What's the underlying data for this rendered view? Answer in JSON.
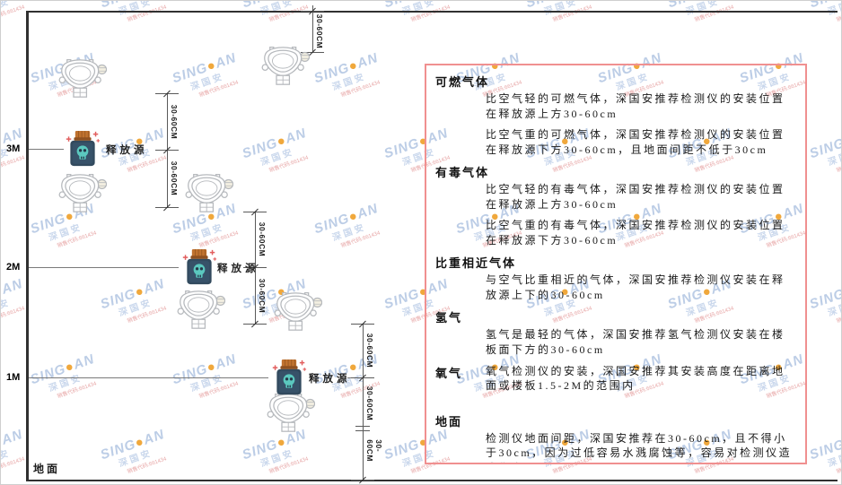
{
  "watermark": {
    "latin_left": "SING",
    "dot": "●",
    "latin_right": "AN",
    "cn": "深国安",
    "sub": "销售代码:661434"
  },
  "diagram": {
    "dimension_label": "30-60CM",
    "source_label": "释放源",
    "ground_label": "地面",
    "height_labels": [
      "3M",
      "2M",
      "1M"
    ]
  },
  "panel": {
    "sections": [
      {
        "heading": "可燃气体",
        "paragraphs": [
          "比空气轻的可燃气体，深国安推荐检测仪的安装位置在释放源上方30-60cm",
          "比空气重的可燃气体，深国安推荐检测仪的安装位置在释放源下方30-60cm，且地面间距不低于30cm"
        ]
      },
      {
        "heading": "有毒气体",
        "paragraphs": [
          "比空气轻的有毒气体，深国安推荐检测仪的安装位置在释放源上方30-60cm",
          "比空气重的有毒气体，深国安推荐检测仪的安装位置在释放源下方30-60cm"
        ]
      },
      {
        "heading": "比重相近气体",
        "paragraphs": [
          "与空气比重相近的气体，深国安推荐检测仪安装在释放源上下的30-60cm"
        ]
      },
      {
        "heading": "氢气",
        "paragraphs": [
          "氢气是最轻的气体，深国安推荐氢气检测仪安装在楼板面下方的30-60cm"
        ]
      },
      {
        "heading": "氧气",
        "paragraphs": [
          "氧气检测仪的安装，深国安推荐其安装高度在距离地面或楼板1.5-2M的范围内"
        ]
      },
      {
        "heading": "地面",
        "paragraphs": [
          "检测仪地面间距，深国安推荐在30-60cm，且不得小于30cm，因为过低容易水溅腐蚀等，容易对检测仪造成伤害"
        ]
      }
    ]
  },
  "colors": {
    "panel_border": "#f09090",
    "structure_line": "#303030",
    "dimension_line": "#5a5a5a",
    "watermark_blue": "#bccde6",
    "watermark_dot": "#f0a83c",
    "watermark_sub_red": "#e8a8a8",
    "source_cap": "#c0722f",
    "source_body": "#324a5e",
    "source_skull": "#5bc8bf",
    "detector_stroke": "#b6b9bd"
  }
}
